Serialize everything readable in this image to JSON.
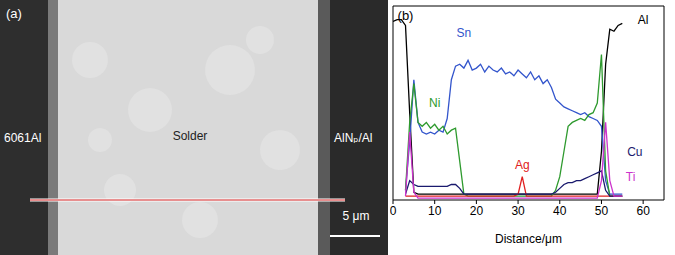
{
  "micrograph": {
    "panel_label": "(a)",
    "labels": [
      "6061Al",
      "Solder",
      "AlNₚ/Al"
    ],
    "scale_bar": "5 μm"
  },
  "chart_data": {
    "type": "line",
    "title": "(b)",
    "x_label": "Distance/μm",
    "x": [
      0,
      1,
      2,
      3,
      4,
      5,
      6,
      7,
      8,
      9,
      10,
      11,
      12,
      13,
      14,
      15,
      16,
      17,
      18,
      19,
      20,
      21,
      22,
      23,
      24,
      25,
      26,
      27,
      28,
      29,
      30,
      31,
      32,
      33,
      34,
      35,
      36,
      37,
      38,
      39,
      40,
      41,
      42,
      43,
      44,
      45,
      46,
      47,
      48,
      49,
      50,
      51,
      52,
      53,
      54,
      55,
      56
    ],
    "xlim": [
      0,
      65
    ],
    "xticks": [
      0,
      10,
      20,
      30,
      40,
      50,
      60
    ],
    "ylim": [
      0,
      1
    ],
    "tick_labels": "x",
    "series": [
      {
        "name": "Al",
        "color": "#000000",
        "values": [
          0.92,
          0.93,
          0.93,
          0.9,
          0.45,
          0.04,
          0.03,
          0.03,
          0.03,
          0.03,
          0.03,
          0.03,
          0.03,
          0.03,
          0.03,
          0.03,
          0.03,
          0.03,
          0.03,
          0.03,
          0.03,
          0.03,
          0.03,
          0.03,
          0.03,
          0.03,
          0.03,
          0.03,
          0.03,
          0.03,
          0.03,
          0.03,
          0.03,
          0.03,
          0.03,
          0.03,
          0.03,
          0.03,
          0.03,
          0.03,
          0.03,
          0.03,
          0.03,
          0.03,
          0.03,
          0.03,
          0.03,
          0.03,
          0.03,
          0.03,
          0.25,
          0.7,
          0.88,
          0.87,
          0.9,
          0.91,
          null
        ]
      },
      {
        "name": "Sn",
        "color": "#3355cc",
        "values": [
          null,
          null,
          null,
          0.05,
          0.3,
          0.62,
          0.4,
          0.35,
          0.34,
          0.35,
          0.34,
          0.36,
          0.35,
          0.42,
          0.62,
          0.69,
          0.7,
          0.68,
          0.72,
          0.67,
          0.68,
          0.7,
          0.66,
          0.69,
          0.67,
          0.66,
          0.68,
          0.65,
          0.66,
          0.64,
          0.67,
          0.65,
          0.63,
          0.66,
          0.62,
          0.64,
          0.6,
          0.62,
          0.58,
          0.52,
          0.5,
          0.48,
          0.47,
          0.46,
          0.45,
          0.44,
          0.45,
          0.43,
          0.42,
          0.41,
          0.38,
          0.1,
          0.03,
          0.03,
          0.03,
          0.03,
          null
        ]
      },
      {
        "name": "Ni",
        "color": "#2e9a2e",
        "values": [
          null,
          null,
          null,
          0.05,
          0.4,
          0.6,
          0.4,
          0.38,
          0.4,
          0.37,
          0.39,
          0.36,
          0.38,
          0.34,
          0.36,
          0.37,
          0.2,
          0.03,
          0.02,
          0.02,
          0.02,
          0.02,
          0.02,
          0.02,
          0.02,
          0.02,
          0.02,
          0.02,
          0.02,
          0.02,
          0.02,
          0.02,
          0.02,
          0.02,
          0.02,
          0.02,
          0.02,
          0.02,
          0.02,
          0.05,
          0.12,
          0.25,
          0.38,
          0.4,
          0.41,
          0.42,
          0.41,
          0.44,
          0.45,
          0.5,
          0.75,
          0.15,
          0.02,
          0.02,
          0.02,
          0.02,
          null
        ]
      },
      {
        "name": "Ag",
        "color": "#e02020",
        "values": [
          null,
          null,
          null,
          0.02,
          0.02,
          0.02,
          0.02,
          0.02,
          0.02,
          0.02,
          0.02,
          0.02,
          0.02,
          0.02,
          0.02,
          0.02,
          0.02,
          0.02,
          0.02,
          0.02,
          0.02,
          0.02,
          0.02,
          0.02,
          0.02,
          0.02,
          0.02,
          0.02,
          0.02,
          0.02,
          0.03,
          0.12,
          0.02,
          0.02,
          0.02,
          0.02,
          0.02,
          0.02,
          0.02,
          0.02,
          0.02,
          0.02,
          0.02,
          0.02,
          0.02,
          0.02,
          0.02,
          0.02,
          0.02,
          0.02,
          0.02,
          0.02,
          0.02,
          0.02,
          0.02,
          0.02,
          null
        ]
      },
      {
        "name": "Cu",
        "color": "#1a1a6e",
        "values": [
          null,
          null,
          null,
          0.03,
          0.1,
          0.08,
          0.07,
          0.07,
          0.07,
          0.07,
          0.07,
          0.07,
          0.07,
          0.07,
          0.08,
          0.08,
          0.06,
          0.03,
          0.03,
          0.03,
          0.03,
          0.03,
          0.03,
          0.03,
          0.03,
          0.03,
          0.03,
          0.03,
          0.03,
          0.03,
          0.03,
          0.03,
          0.03,
          0.03,
          0.03,
          0.03,
          0.03,
          0.03,
          0.03,
          0.04,
          0.06,
          0.08,
          0.09,
          0.09,
          0.1,
          0.1,
          0.11,
          0.12,
          0.13,
          0.14,
          0.15,
          0.05,
          0.02,
          0.02,
          0.02,
          0.02,
          null
        ]
      },
      {
        "name": "Ti",
        "color": "#cc33cc",
        "values": [
          null,
          null,
          null,
          0.02,
          0.35,
          0.04,
          0.01,
          0.01,
          0.01,
          0.01,
          0.01,
          0.01,
          0.01,
          0.01,
          0.01,
          0.01,
          0.01,
          0.01,
          0.01,
          0.01,
          0.01,
          0.01,
          0.01,
          0.01,
          0.01,
          0.01,
          0.01,
          0.01,
          0.01,
          0.01,
          0.01,
          0.01,
          0.01,
          0.01,
          0.01,
          0.01,
          0.01,
          0.01,
          0.01,
          0.01,
          0.01,
          0.01,
          0.01,
          0.01,
          0.01,
          0.01,
          0.01,
          0.01,
          0.01,
          0.01,
          0.1,
          0.4,
          0.1,
          0.02,
          0.02,
          0.02,
          null
        ]
      }
    ]
  }
}
